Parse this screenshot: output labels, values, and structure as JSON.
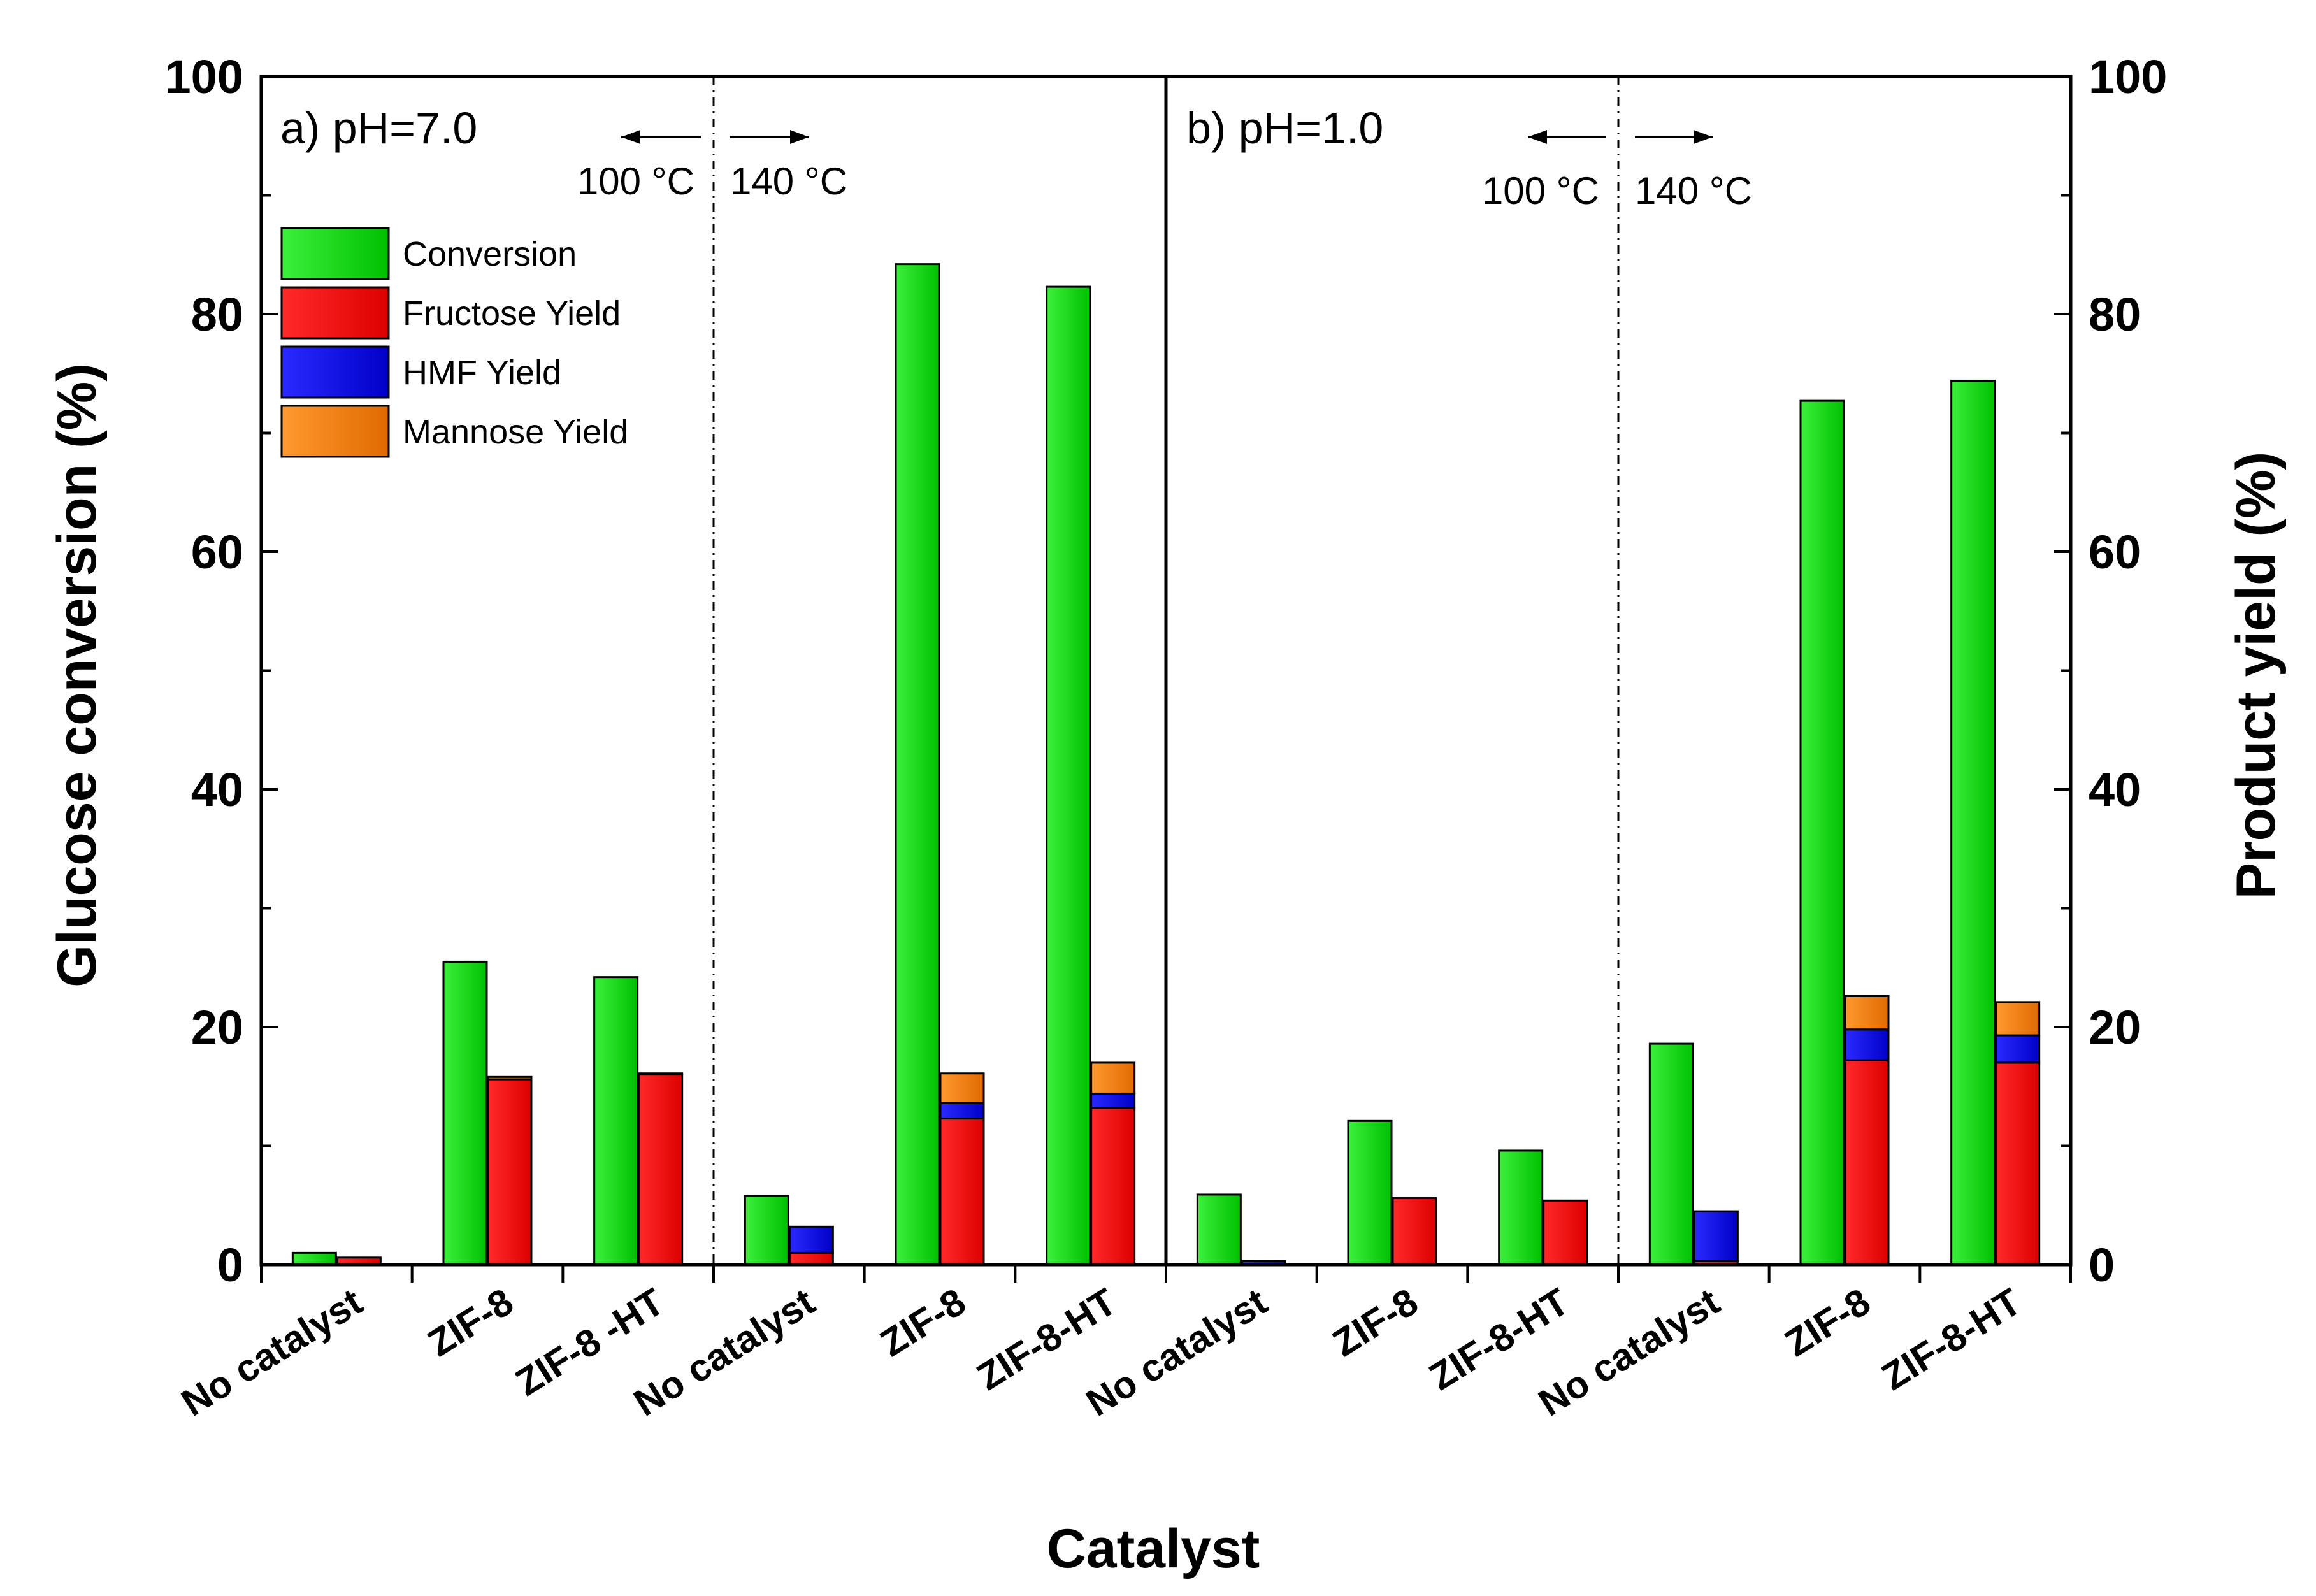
{
  "chart_data": {
    "type": "bar",
    "xlabel": "Catalyst",
    "ylabel_left": "Glucose conversion (%)",
    "ylabel_right": "Product yield (%)",
    "ylim": [
      0,
      100
    ],
    "yticks": [
      "0",
      "20",
      "40",
      "60",
      "80",
      "100"
    ],
    "panels": [
      {
        "label": "a) pH=7.0",
        "temp_low": "100 °C",
        "temp_high": "140 °C"
      },
      {
        "label": "b) pH=1.0",
        "temp_low": "100 °C",
        "temp_high": "140 °C"
      }
    ],
    "categories": [
      "No catalyst",
      "ZIF-8",
      "ZIF-8 -HT",
      "No catalyst",
      "ZIF-8",
      "ZIF-8-HT",
      "No catalyst",
      "ZIF-8",
      "ZIF-8-HT",
      "No catalyst",
      "ZIF-8",
      "ZIF-8-HT"
    ],
    "series": [
      {
        "name": "Conversion",
        "color": "#00e000",
        "values": [
          1.0,
          25.5,
          24.2,
          5.8,
          84.2,
          82.3,
          5.9,
          12.1,
          9.6,
          18.6,
          72.7,
          74.4
        ]
      },
      {
        "name": "Fructose Yield",
        "color": "#ff0000",
        "stack": "yield",
        "values": [
          0.6,
          15.6,
          16.0,
          1.0,
          12.3,
          13.2,
          0.0,
          5.6,
          5.4,
          0.3,
          17.2,
          17.0
        ]
      },
      {
        "name": "HMF Yield",
        "color": "#0000ff",
        "stack": "yield",
        "values": [
          0.0,
          0.0,
          0.0,
          2.2,
          1.3,
          1.2,
          0.3,
          0.0,
          0.0,
          4.2,
          2.6,
          2.3
        ]
      },
      {
        "name": "Mannose Yield",
        "color": "#ff8000",
        "stack": "yield",
        "values": [
          0.0,
          0.2,
          0.1,
          0.0,
          2.5,
          2.6,
          0.0,
          0.0,
          0.0,
          0.0,
          2.8,
          2.8
        ]
      }
    ],
    "legend": [
      "Conversion",
      "Fructose Yield",
      "HMF Yield",
      "Mannose Yield"
    ]
  }
}
